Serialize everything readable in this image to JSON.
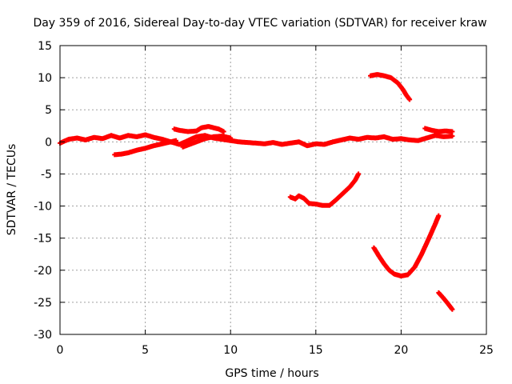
{
  "chart_data": {
    "type": "scatter",
    "title": "Day 359 of 2016, Sidereal Day-to-day VTEC variation (SDTVAR) for receiver kraw",
    "xlabel": "GPS time / hours",
    "ylabel": "SDTVAR / TECUs",
    "xlim": [
      0,
      25
    ],
    "ylim": [
      -30,
      15
    ],
    "xticks": [
      0,
      5,
      10,
      15,
      20,
      25
    ],
    "yticks": [
      15,
      10,
      5,
      0,
      -5,
      -10,
      -15,
      -20,
      -25,
      -30
    ],
    "grid": true,
    "marker": "plus",
    "color": "#ff0000",
    "series": [
      {
        "points": [
          [
            0.0,
            -0.2
          ],
          [
            0.5,
            0.4
          ],
          [
            1.0,
            0.6
          ],
          [
            1.5,
            0.3
          ],
          [
            2.0,
            0.7
          ],
          [
            2.5,
            0.5
          ],
          [
            3.0,
            1.0
          ],
          [
            3.5,
            0.6
          ],
          [
            4.0,
            1.0
          ],
          [
            4.5,
            0.8
          ],
          [
            5.0,
            1.1
          ],
          [
            5.5,
            0.7
          ],
          [
            6.0,
            0.4
          ],
          [
            6.5,
            0.0
          ],
          [
            7.0,
            -0.4
          ],
          [
            7.5,
            0.2
          ],
          [
            8.0,
            0.8
          ],
          [
            8.5,
            1.0
          ],
          [
            9.0,
            0.6
          ],
          [
            9.5,
            0.4
          ],
          [
            10.0,
            0.2
          ],
          [
            10.5,
            0.0
          ],
          [
            11.0,
            -0.1
          ],
          [
            11.5,
            -0.2
          ],
          [
            12.0,
            -0.3
          ],
          [
            12.5,
            -0.1
          ],
          [
            13.0,
            -0.4
          ],
          [
            13.5,
            -0.2
          ],
          [
            14.0,
            0.0
          ],
          [
            14.5,
            -0.6
          ],
          [
            15.0,
            -0.3
          ],
          [
            15.5,
            -0.4
          ],
          [
            16.0,
            0.0
          ],
          [
            16.5,
            0.3
          ],
          [
            17.0,
            0.6
          ],
          [
            17.5,
            0.4
          ],
          [
            18.0,
            0.7
          ],
          [
            18.5,
            0.6
          ],
          [
            19.0,
            0.8
          ],
          [
            19.5,
            0.4
          ],
          [
            20.0,
            0.5
          ],
          [
            20.5,
            0.3
          ],
          [
            21.0,
            0.2
          ],
          [
            21.5,
            0.6
          ],
          [
            22.0,
            1.0
          ],
          [
            22.5,
            0.8
          ],
          [
            23.0,
            0.9
          ]
        ]
      },
      {
        "points": [
          [
            3.2,
            -2.0
          ],
          [
            3.6,
            -1.9
          ],
          [
            4.0,
            -1.7
          ],
          [
            4.5,
            -1.3
          ],
          [
            5.0,
            -1.0
          ],
          [
            5.5,
            -0.6
          ],
          [
            6.0,
            -0.3
          ],
          [
            6.5,
            0.0
          ],
          [
            6.8,
            0.2
          ]
        ]
      },
      {
        "points": [
          [
            6.7,
            2.0
          ],
          [
            7.0,
            1.8
          ],
          [
            7.5,
            1.6
          ],
          [
            8.0,
            1.7
          ],
          [
            8.3,
            2.2
          ],
          [
            8.7,
            2.4
          ],
          [
            9.0,
            2.2
          ],
          [
            9.3,
            2.0
          ],
          [
            9.6,
            1.6
          ]
        ]
      },
      {
        "points": [
          [
            7.2,
            -0.8
          ],
          [
            7.5,
            -0.5
          ],
          [
            8.0,
            0.0
          ],
          [
            8.5,
            0.5
          ],
          [
            9.0,
            0.8
          ],
          [
            9.5,
            0.9
          ],
          [
            10.0,
            0.6
          ]
        ]
      },
      {
        "points": [
          [
            18.2,
            10.3
          ],
          [
            18.6,
            10.5
          ],
          [
            19.0,
            10.3
          ],
          [
            19.4,
            10.0
          ],
          [
            19.8,
            9.2
          ],
          [
            20.1,
            8.2
          ],
          [
            20.3,
            7.3
          ],
          [
            20.5,
            6.6
          ]
        ]
      },
      {
        "points": [
          [
            21.4,
            2.1
          ],
          [
            21.8,
            1.8
          ],
          [
            22.2,
            1.6
          ],
          [
            22.6,
            1.7
          ],
          [
            23.0,
            1.6
          ]
        ]
      },
      {
        "points": [
          [
            13.5,
            -8.6
          ],
          [
            13.8,
            -8.9
          ],
          [
            14.0,
            -8.4
          ],
          [
            14.3,
            -8.8
          ],
          [
            14.6,
            -9.6
          ],
          [
            15.0,
            -9.7
          ],
          [
            15.4,
            -9.9
          ],
          [
            15.8,
            -9.9
          ],
          [
            16.2,
            -9.0
          ],
          [
            16.6,
            -8.0
          ],
          [
            17.0,
            -7.0
          ],
          [
            17.3,
            -6.0
          ],
          [
            17.5,
            -5.0
          ]
        ]
      },
      {
        "points": [
          [
            18.4,
            -16.5
          ],
          [
            18.7,
            -17.8
          ],
          [
            19.0,
            -19.0
          ],
          [
            19.3,
            -20.0
          ],
          [
            19.6,
            -20.6
          ],
          [
            20.0,
            -20.9
          ],
          [
            20.4,
            -20.7
          ],
          [
            20.8,
            -19.5
          ],
          [
            21.2,
            -17.5
          ],
          [
            21.6,
            -15.2
          ],
          [
            22.0,
            -12.8
          ],
          [
            22.2,
            -11.5
          ]
        ]
      },
      {
        "points": [
          [
            22.2,
            -23.5
          ],
          [
            22.5,
            -24.4
          ],
          [
            22.8,
            -25.4
          ],
          [
            23.0,
            -26.1
          ]
        ]
      }
    ]
  }
}
